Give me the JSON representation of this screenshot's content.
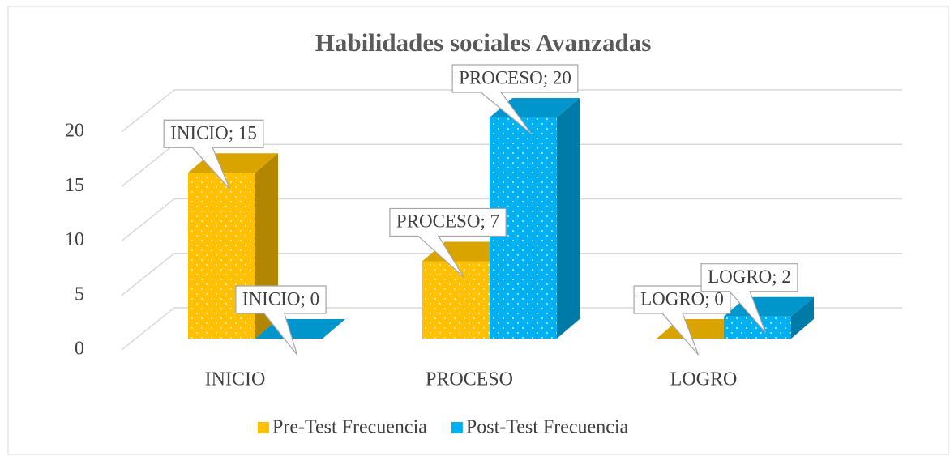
{
  "chart_data": {
    "type": "bar3d",
    "title": "Habilidades sociales Avanzadas",
    "categories": [
      "INICIO",
      "PROCESO",
      "LOGRO"
    ],
    "series": [
      {
        "name": "Pre-Test Frecuencia",
        "color": "#FFC000",
        "values": [
          15,
          7,
          0
        ],
        "value_labels": [
          "INICIO; 15",
          "PROCESO; 7",
          "LOGRO; 0"
        ]
      },
      {
        "name": "Post-Test Frecuencia",
        "color": "#00B0F0",
        "values": [
          0,
          20,
          2
        ],
        "value_labels": [
          "INICIO; 0",
          "PROCESO; 20",
          "LOGRO; 2"
        ]
      }
    ],
    "ylim": [
      0,
      20
    ],
    "yticks": [
      0,
      5,
      10,
      15,
      20
    ],
    "grid": true,
    "legend": "bottom"
  }
}
